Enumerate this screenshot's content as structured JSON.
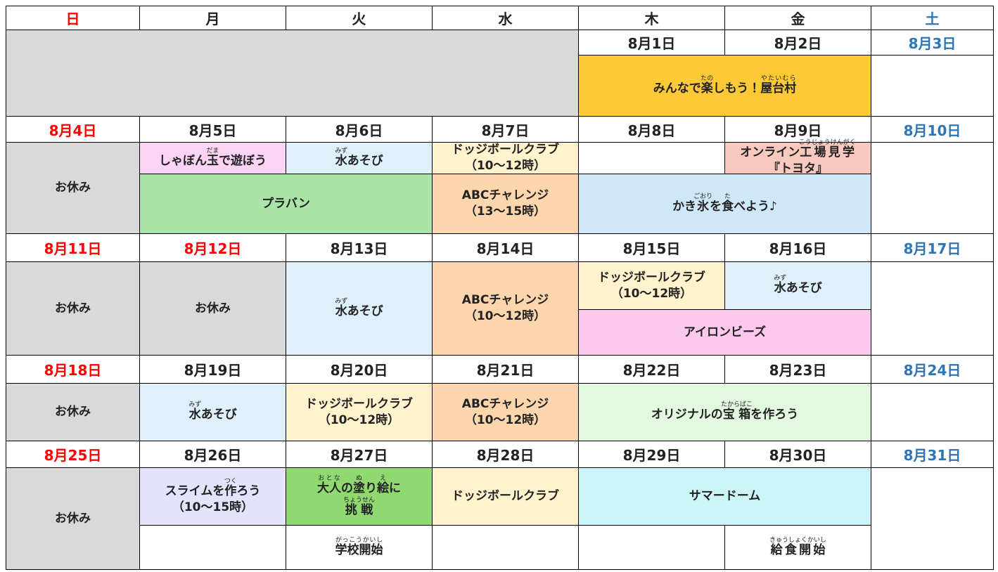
{
  "headers": [
    "日",
    "月",
    "火",
    "水",
    "木",
    "金",
    "土"
  ],
  "weeks": [
    {
      "dates": [
        "8月1日",
        "8月2日",
        "8月3日"
      ],
      "events": [
        {
          "lines": [
            [
              {
                "text": "みんなで"
              },
              {
                "text": "楽",
                "ruby": "たの"
              },
              {
                "text": "しもう！"
              },
              {
                "text": "屋台村",
                "ruby": "やたいむら"
              }
            ]
          ]
        }
      ]
    },
    {
      "dates": [
        "8月4日",
        "8月5日",
        "8月6日",
        "8月7日",
        "8月8日",
        "8月9日",
        "8月10日"
      ],
      "events": [
        {
          "lines": [
            [
              {
                "text": "お休み"
              }
            ]
          ]
        },
        {
          "lines": [
            [
              {
                "text": "しゃぼん"
              },
              {
                "text": "玉",
                "ruby": "だま"
              },
              {
                "text": "で遊ぼう"
              }
            ]
          ]
        },
        {
          "lines": [
            [
              {
                "text": "水",
                "ruby": "みず"
              },
              {
                "text": "あそび"
              }
            ]
          ]
        },
        {
          "lines": [
            [
              {
                "text": "ドッジボールクラブ"
              }
            ],
            [
              {
                "text": "（10〜12時）"
              }
            ]
          ]
        },
        {
          "lines": [
            [
              {
                "text": "オンライン"
              },
              {
                "text": "工場見学",
                "ruby": "こうじょうけんがく"
              }
            ],
            [
              {
                "text": "『トヨタ』"
              }
            ]
          ]
        },
        {
          "lines": [
            [
              {
                "text": "プラバン"
              }
            ]
          ]
        },
        {
          "lines": [
            [
              {
                "text": "ABCチャレンジ"
              }
            ],
            [
              {
                "text": "（13〜15時）"
              }
            ]
          ]
        },
        {
          "lines": [
            [
              {
                "text": "かき"
              },
              {
                "text": "氷",
                "ruby": "ごおり"
              },
              {
                "text": "を"
              },
              {
                "text": "食",
                "ruby": "た"
              },
              {
                "text": "べよう♪"
              }
            ]
          ]
        }
      ]
    },
    {
      "dates": [
        "8月11日",
        "8月12日",
        "8月13日",
        "8月14日",
        "8月15日",
        "8月16日",
        "8月17日"
      ],
      "events": [
        {
          "lines": [
            [
              {
                "text": "お休み"
              }
            ]
          ]
        },
        {
          "lines": [
            [
              {
                "text": "お休み"
              }
            ]
          ]
        },
        {
          "lines": [
            [
              {
                "text": "水",
                "ruby": "みず"
              },
              {
                "text": "あそび"
              }
            ]
          ]
        },
        {
          "lines": [
            [
              {
                "text": "ABCチャレンジ"
              }
            ],
            [
              {
                "text": "（10〜12時）"
              }
            ]
          ]
        },
        {
          "lines": [
            [
              {
                "text": "ドッジボールクラブ"
              }
            ],
            [
              {
                "text": "（10〜12時）"
              }
            ]
          ]
        },
        {
          "lines": [
            [
              {
                "text": "水",
                "ruby": "みず"
              },
              {
                "text": "あそび"
              }
            ]
          ]
        },
        {
          "lines": [
            [
              {
                "text": "アイロンビーズ"
              }
            ]
          ]
        }
      ]
    },
    {
      "dates": [
        "8月18日",
        "8月19日",
        "8月20日",
        "8月21日",
        "8月22日",
        "8月23日",
        "8月24日"
      ],
      "events": [
        {
          "lines": [
            [
              {
                "text": "お休み"
              }
            ]
          ]
        },
        {
          "lines": [
            [
              {
                "text": "水",
                "ruby": "みず"
              },
              {
                "text": "あそび"
              }
            ]
          ]
        },
        {
          "lines": [
            [
              {
                "text": "ドッジボールクラブ"
              }
            ],
            [
              {
                "text": "（10〜12時）"
              }
            ]
          ]
        },
        {
          "lines": [
            [
              {
                "text": "ABCチャレンジ"
              }
            ],
            [
              {
                "text": "（10〜12時）"
              }
            ]
          ]
        },
        {
          "lines": [
            [
              {
                "text": "オリジナルの"
              },
              {
                "text": "宝箱",
                "ruby": "たからばこ"
              },
              {
                "text": "を作ろう"
              }
            ]
          ]
        }
      ]
    },
    {
      "dates": [
        "8月25日",
        "8月26日",
        "8月27日",
        "8月28日",
        "8月29日",
        "8月30日",
        "8月31日"
      ],
      "events": [
        {
          "lines": [
            [
              {
                "text": "お休み"
              }
            ]
          ]
        },
        {
          "lines": [
            [
              {
                "text": "スライムを"
              },
              {
                "text": "作",
                "ruby": "つく"
              },
              {
                "text": "ろう"
              }
            ],
            [
              {
                "text": "（10〜15時）"
              }
            ]
          ]
        },
        {
          "lines": [
            [
              {
                "text": "大人",
                "ruby": "おとな"
              },
              {
                "text": "の"
              },
              {
                "text": "塗",
                "ruby": "ぬ"
              },
              {
                "text": "り"
              },
              {
                "text": "絵",
                "ruby": "え"
              },
              {
                "text": "に"
              }
            ],
            [
              {
                "text": "挑戦",
                "ruby": "ちょうせん"
              }
            ]
          ]
        },
        {
          "lines": [
            [
              {
                "text": "ドッジボールクラブ"
              }
            ]
          ]
        },
        {
          "lines": [
            [
              {
                "text": "サマードーム"
              }
            ]
          ]
        },
        {
          "lines": [
            [
              {
                "text": "学校開始",
                "ruby": "がっこうかいし"
              }
            ]
          ]
        },
        {
          "lines": [
            [
              {
                "text": "給食開始",
                "ruby": "きゅうしょくかいし"
              }
            ]
          ]
        }
      ]
    }
  ]
}
